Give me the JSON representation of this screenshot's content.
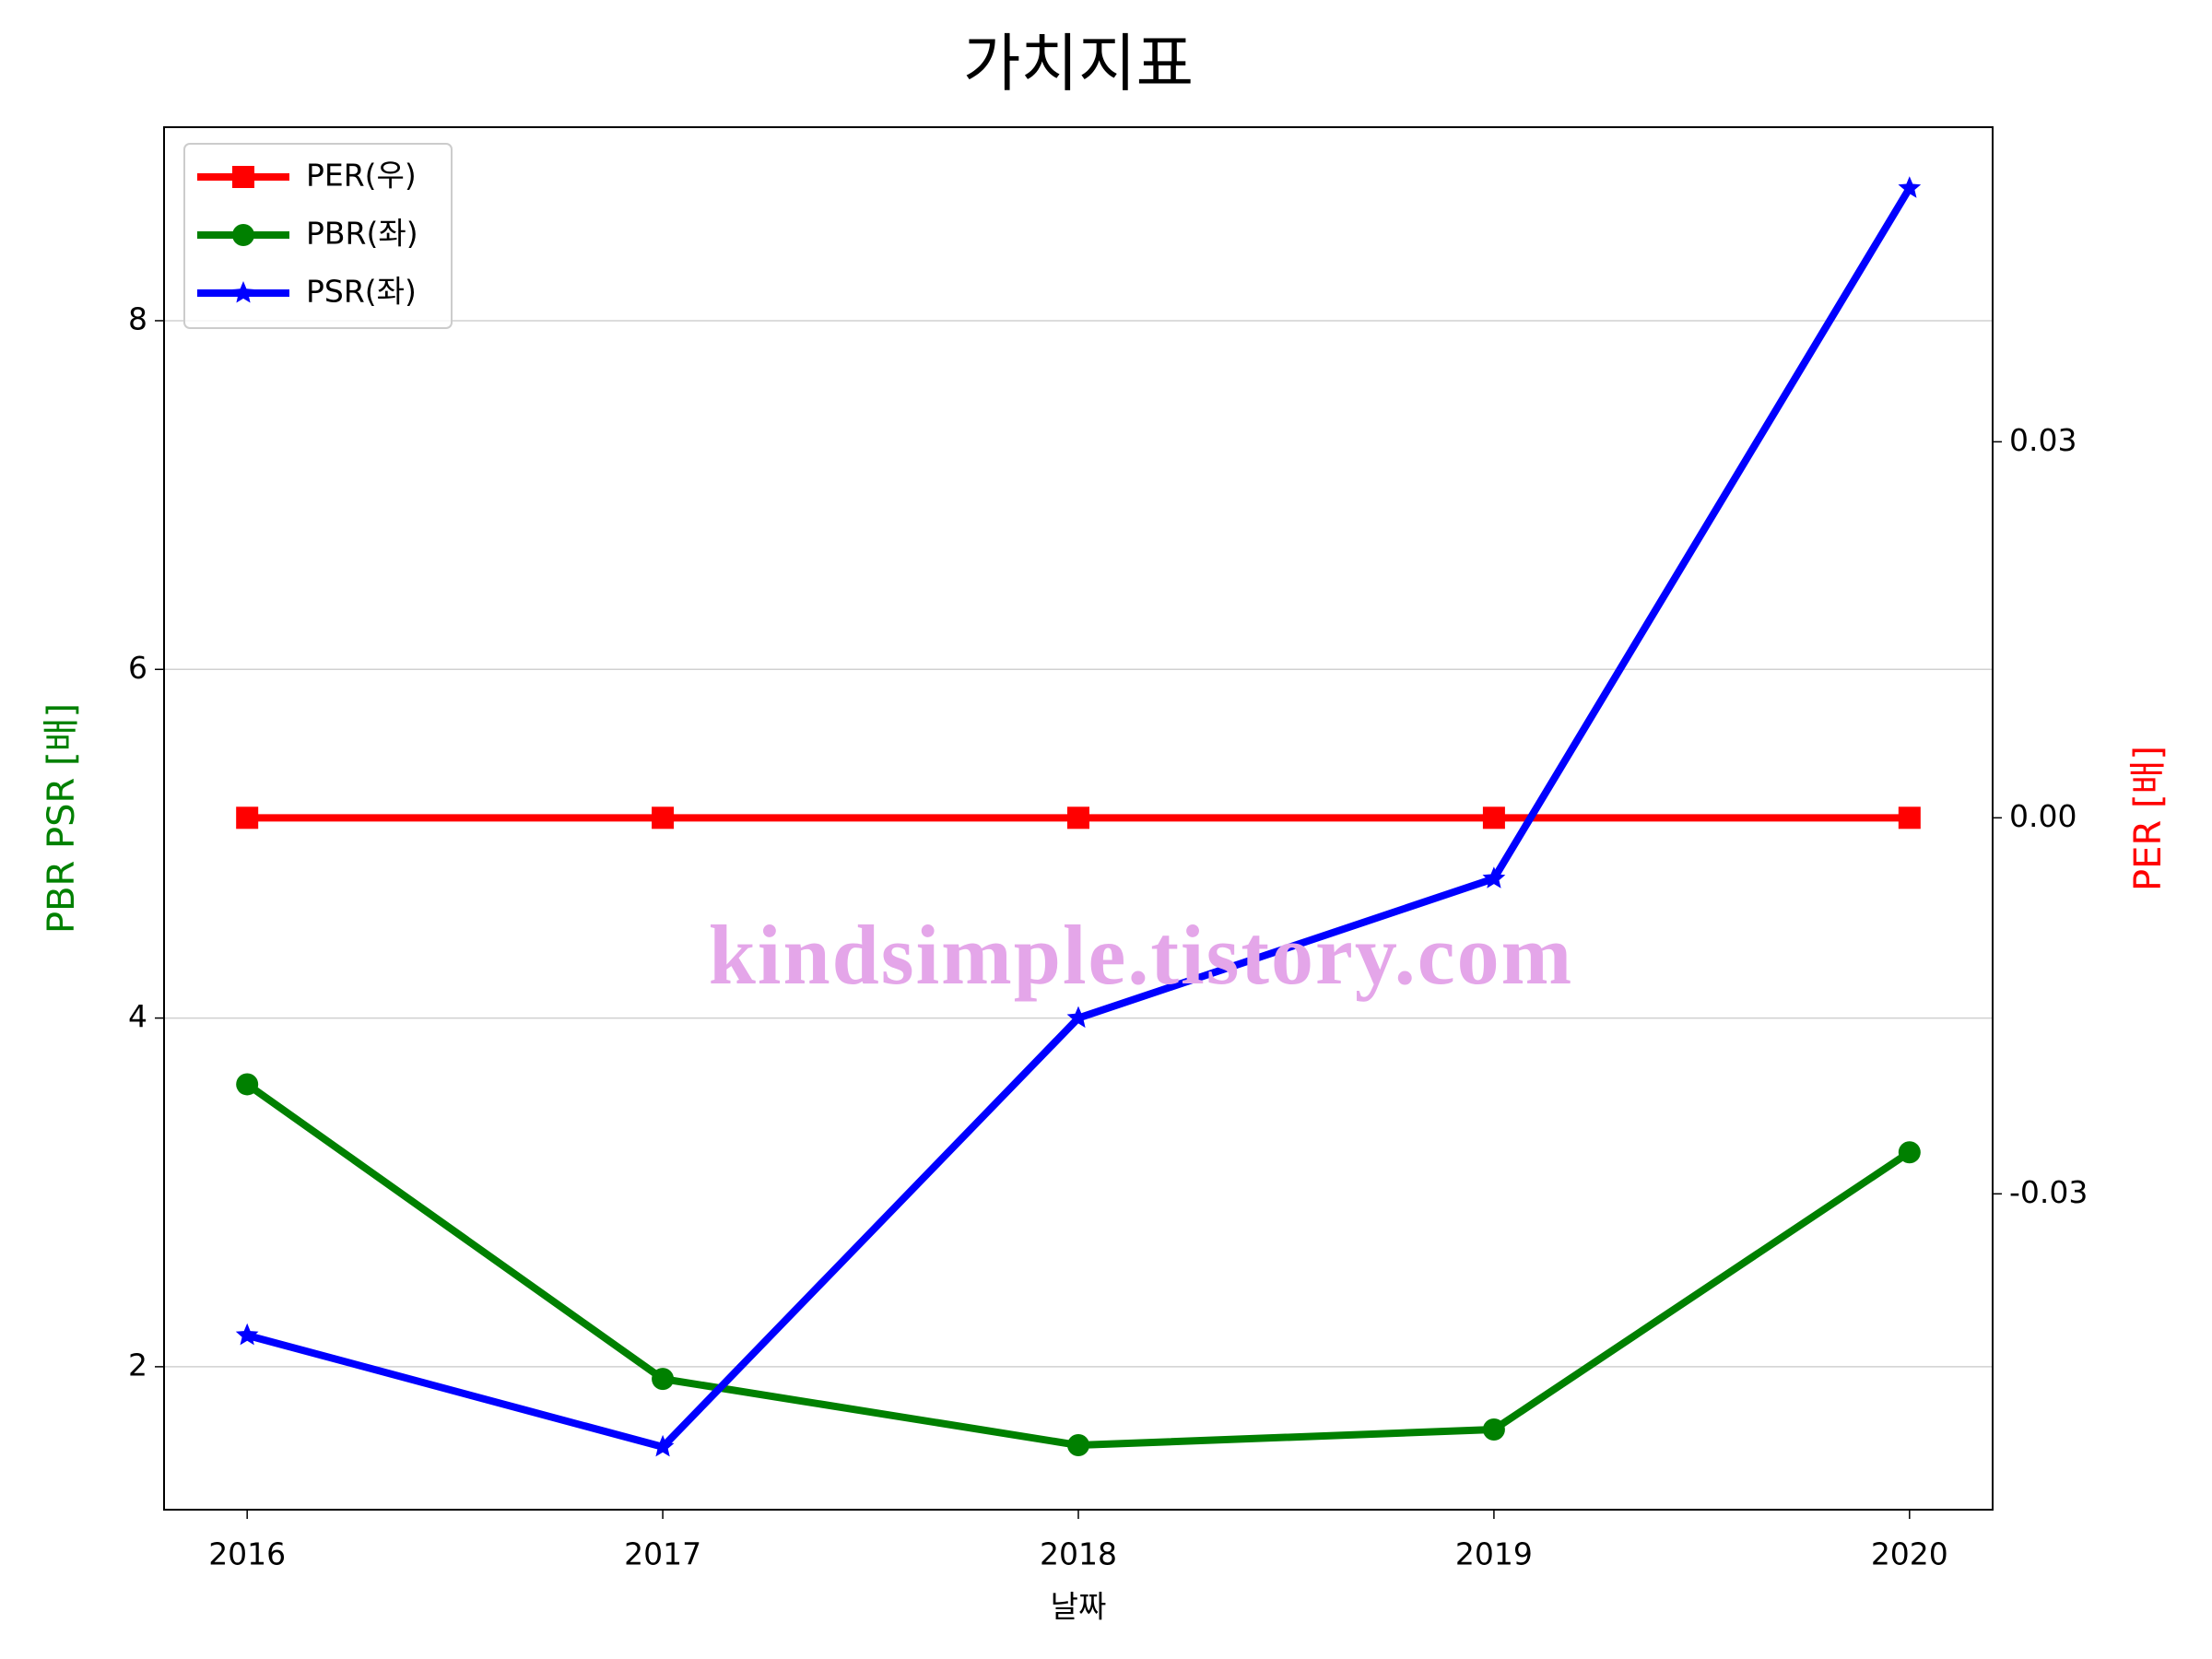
{
  "chart_data": {
    "type": "line",
    "title": "가치지표",
    "x_label": "날짜",
    "y_label": "PBR PSR [배]",
    "y2_label": "PER [배]",
    "annotation": "kindsimple.tistory.com",
    "categories": [
      "2016",
      "2017",
      "2018",
      "2019",
      "2020"
    ],
    "series": [
      {
        "name": "PER(우)",
        "color": "#ff0000",
        "marker": "s",
        "axis": "y2",
        "values": [
          0,
          0,
          0,
          0,
          0
        ]
      },
      {
        "name": "PBR(좌)",
        "color": "#008000",
        "marker": "o",
        "values": [
          3.62,
          1.93,
          1.55,
          1.64,
          3.23
        ]
      },
      {
        "name": "PSR(좌)",
        "color": "#0000ff",
        "marker": "*",
        "values": [
          2.18,
          1.54,
          4.0,
          4.8,
          8.76
        ]
      }
    ],
    "ylim": [
      1.18,
      9.11
    ],
    "yticks": [
      2,
      4,
      6,
      8
    ],
    "y2lim": [
      -0.0552,
      0.0551
    ],
    "y2ticks": [
      -0.03,
      {
        "value": 0,
        "label": "0.00"
      },
      0.03
    ],
    "grid": true,
    "legend": "upper left"
  }
}
